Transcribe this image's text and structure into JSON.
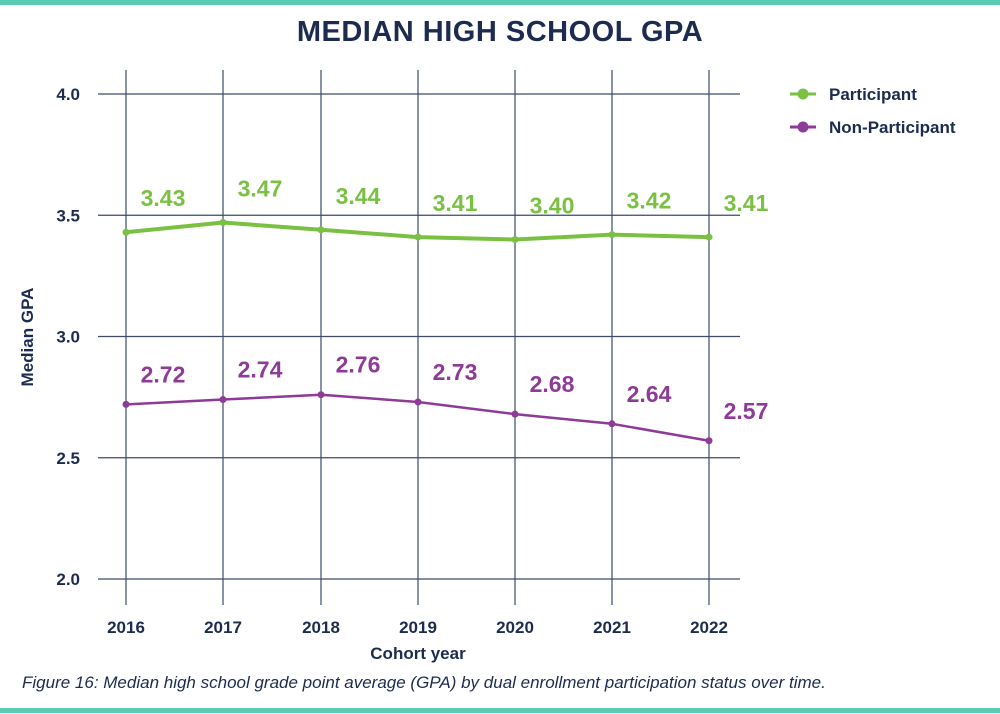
{
  "chart_data": {
    "type": "line",
    "title": "MEDIAN HIGH SCHOOL GPA",
    "xlabel": "Cohort year",
    "ylabel": "Median GPA",
    "categories": [
      "2016",
      "2017",
      "2018",
      "2019",
      "2020",
      "2021",
      "2022"
    ],
    "y_ticks": [
      "2.0",
      "2.5",
      "3.0",
      "3.5",
      "4.0"
    ],
    "ylim": [
      2.0,
      4.0
    ],
    "grid": true,
    "legend_position": "top-right",
    "series": [
      {
        "name": "Participant",
        "color": "#7ac143",
        "values": [
          3.43,
          3.47,
          3.44,
          3.41,
          3.4,
          3.42,
          3.41
        ],
        "labels": [
          "3.43",
          "3.47",
          "3.44",
          "3.41",
          "3.40",
          "3.42",
          "3.41"
        ]
      },
      {
        "name": "Non-Participant",
        "color": "#8e3a97",
        "values": [
          2.72,
          2.74,
          2.76,
          2.73,
          2.68,
          2.64,
          2.57
        ],
        "labels": [
          "2.72",
          "2.74",
          "2.76",
          "2.73",
          "2.68",
          "2.64",
          "2.57"
        ]
      }
    ]
  },
  "caption": "Figure 16: Median high school grade point average (GPA) by dual enrollment participation status over time.",
  "colors": {
    "accent_rule": "#5ccbb4",
    "text": "#1c2b4f",
    "grid": "#3d4a6b"
  }
}
